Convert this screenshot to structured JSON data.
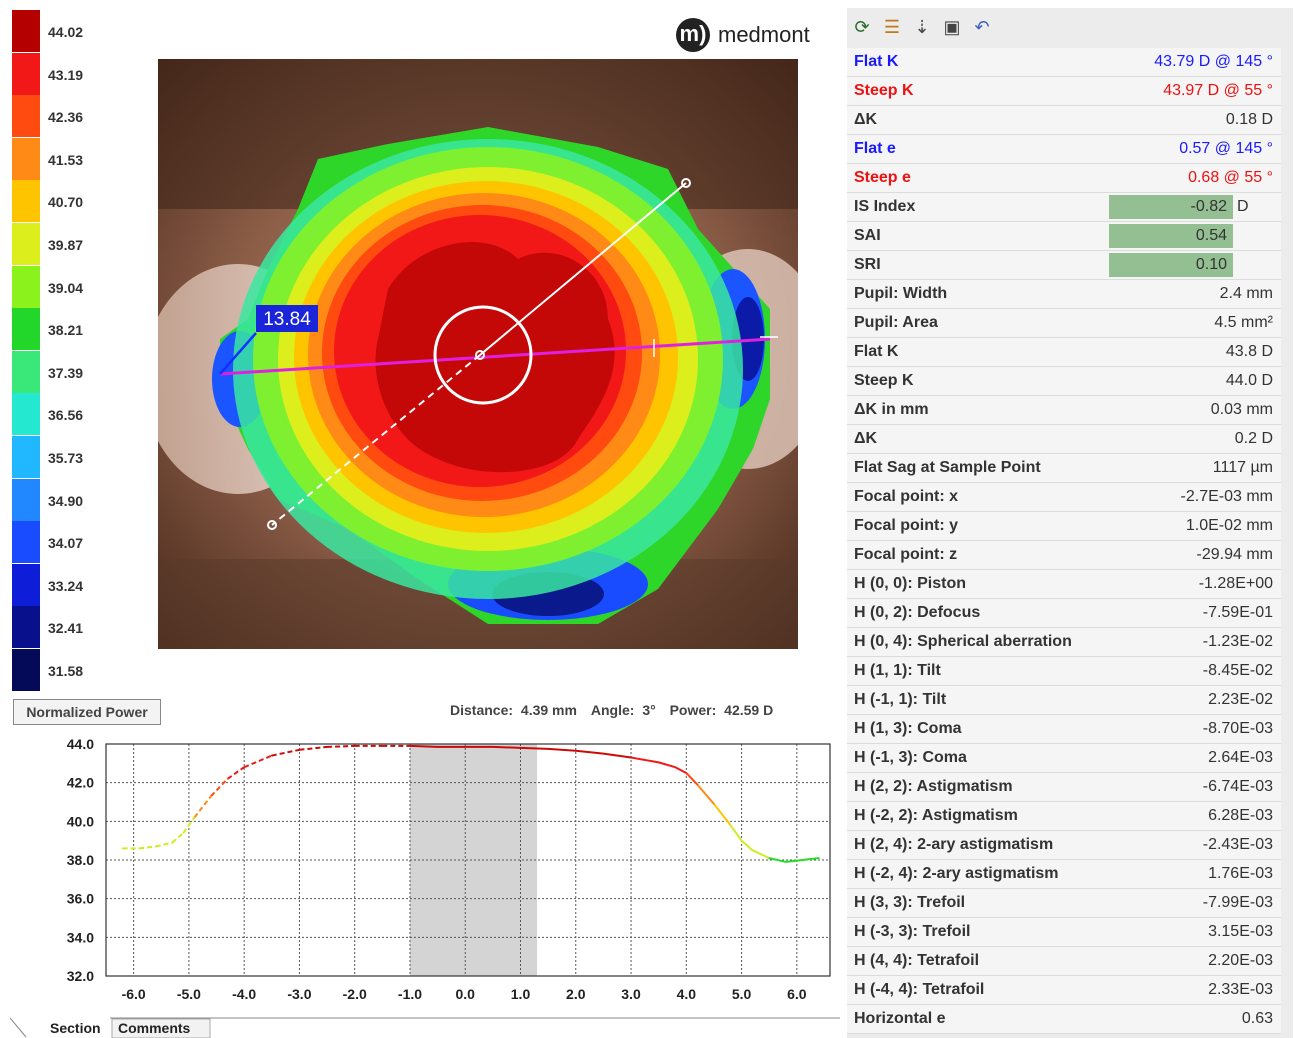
{
  "app": {
    "brand_mark": "m)",
    "brand": "medmont"
  },
  "legend": {
    "items": [
      {
        "value": "44.02",
        "color": "#b50000"
      },
      {
        "value": "43.19",
        "color": "#f21818"
      },
      {
        "value": "42.36",
        "color": "#ff4a10"
      },
      {
        "value": "41.53",
        "color": "#ff8a16"
      },
      {
        "value": "40.70",
        "color": "#ffc400"
      },
      {
        "value": "39.87",
        "color": "#dcee1c"
      },
      {
        "value": "39.04",
        "color": "#8cf21c"
      },
      {
        "value": "38.21",
        "color": "#22d62a"
      },
      {
        "value": "37.39",
        "color": "#3ae87a"
      },
      {
        "value": "36.56",
        "color": "#24e8d0"
      },
      {
        "value": "35.73",
        "color": "#22b8ff"
      },
      {
        "value": "34.90",
        "color": "#2288ff"
      },
      {
        "value": "34.07",
        "color": "#1a4cff"
      },
      {
        "value": "33.24",
        "color": "#0e1ed8"
      },
      {
        "value": "32.41",
        "color": "#08108c"
      },
      {
        "value": "31.58",
        "color": "#040a58"
      }
    ]
  },
  "map": {
    "callout_value": "13.84"
  },
  "normalized_power_button": "Normalized Power",
  "measurement": {
    "distance_label": "Distance:",
    "distance": "4.39 mm",
    "angle_label": "Angle:",
    "angle": "3°",
    "power_label": "Power:",
    "power": "42.59 D"
  },
  "chart_data": {
    "type": "line",
    "ylim": [
      32.0,
      44.0
    ],
    "xlim": [
      -6.5,
      6.6
    ],
    "yticks": [
      "44.0",
      "42.0",
      "40.0",
      "38.0",
      "36.0",
      "34.0",
      "32.0"
    ],
    "xticks": [
      "-6.0",
      "-5.0",
      "-4.0",
      "-3.0",
      "-2.0",
      "-1.0",
      "0.0",
      "1.0",
      "2.0",
      "3.0",
      "4.0",
      "5.0",
      "6.0"
    ],
    "shaded_region": [
      -1.0,
      1.3
    ],
    "series": [
      {
        "x": [
          -6.2,
          -5.9,
          -5.6,
          -5.3,
          -5.1,
          -4.9,
          -4.6,
          -4.3,
          -4.0,
          -3.5,
          -3.0,
          -2.5,
          -2.0,
          -1.5,
          -1.0,
          -0.5,
          0.0,
          0.5,
          1.0,
          1.5,
          2.0,
          2.5,
          3.0,
          3.5,
          3.8,
          4.0,
          4.2,
          4.5,
          4.8,
          5.0,
          5.2,
          5.5,
          5.8,
          6.1,
          6.4
        ],
        "y": [
          38.6,
          38.6,
          38.7,
          38.9,
          39.4,
          40.2,
          41.3,
          42.2,
          42.8,
          43.4,
          43.7,
          43.85,
          43.9,
          43.9,
          43.9,
          43.85,
          43.85,
          43.85,
          43.8,
          43.75,
          43.65,
          43.5,
          43.3,
          43.05,
          42.8,
          42.5,
          41.9,
          40.9,
          39.8,
          39.0,
          38.5,
          38.1,
          37.9,
          38.0,
          38.1
        ]
      }
    ]
  },
  "tabs": [
    "Section",
    "Comments"
  ],
  "params": [
    {
      "label": "Flat K",
      "value": "43.79 D @ 145 °",
      "color": "#1a1aff"
    },
    {
      "label": "Steep K",
      "value": "43.97 D @  55 °",
      "color": "#ee1111"
    },
    {
      "label": "ΔK",
      "value": "0.18 D"
    },
    {
      "label": "Flat e",
      "value": "0.57 @ 145 °",
      "color": "#1a1aff"
    },
    {
      "label": "Steep e",
      "value": "0.68 @  55 °",
      "color": "#ee1111"
    },
    {
      "label": "IS Index",
      "value": "-0.82",
      "unit": "D",
      "hl": true
    },
    {
      "label": "SAI",
      "value": "0.54",
      "hl": true
    },
    {
      "label": "SRI",
      "value": "0.10",
      "hl": true
    },
    {
      "label": "Pupil: Width",
      "value": "2.4 mm"
    },
    {
      "label": "Pupil: Area",
      "value": "4.5 mm²"
    },
    {
      "label": "Flat K",
      "value": "43.8 D"
    },
    {
      "label": "Steep K",
      "value": "44.0 D"
    },
    {
      "label": "ΔK in mm",
      "value": "0.03 mm"
    },
    {
      "label": "ΔK",
      "value": "0.2 D"
    },
    {
      "label": "Flat Sag at Sample Point",
      "value": "1117 µm"
    },
    {
      "label": "Focal point: x",
      "value": "-2.7E-03 mm"
    },
    {
      "label": "Focal point: y",
      "value": "1.0E-02 mm"
    },
    {
      "label": "Focal point: z",
      "value": "-29.94 mm"
    },
    {
      "label": "H (0, 0): Piston",
      "value": "-1.28E+00"
    },
    {
      "label": "H (0, 2): Defocus",
      "value": "-7.59E-01"
    },
    {
      "label": "H (0, 4): Spherical aberration",
      "value": "-1.23E-02"
    },
    {
      "label": "H (1, 1): Tilt",
      "value": "-8.45E-02"
    },
    {
      "label": "H (-1, 1): Tilt",
      "value": "2.23E-02"
    },
    {
      "label": "H (1, 3): Coma",
      "value": "-8.70E-03"
    },
    {
      "label": "H (-1, 3): Coma",
      "value": "2.64E-03"
    },
    {
      "label": "H (2, 2): Astigmatism",
      "value": "-6.74E-03"
    },
    {
      "label": "H (-2, 2): Astigmatism",
      "value": "6.28E-03"
    },
    {
      "label": "H (2, 4): 2-ary astigmatism",
      "value": "-2.43E-03"
    },
    {
      "label": "H (-2, 4): 2-ary astigmatism",
      "value": "1.76E-03"
    },
    {
      "label": "H (3, 3): Trefoil",
      "value": "-7.99E-03"
    },
    {
      "label": "H (-3, 3): Trefoil",
      "value": "3.15E-03"
    },
    {
      "label": "H (4, 4): Tetrafoil",
      "value": "2.20E-03"
    },
    {
      "label": "H (-4, 4): Tetrafoil",
      "value": "2.33E-03"
    },
    {
      "label": "Horizontal e",
      "value": "0.63"
    }
  ],
  "toolbar": {
    "icons": [
      "refresh-icon",
      "list-icon",
      "sort-list-icon",
      "save-icon",
      "undo-icon"
    ]
  }
}
